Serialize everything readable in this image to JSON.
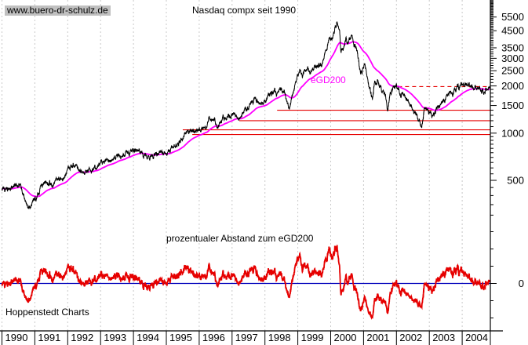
{
  "header": {
    "watermark": "www.buero-dr-schulz.de",
    "title": "Nasdaq compx seit 1990"
  },
  "footer": {
    "source": "Hoppenstedt Charts"
  },
  "chart_data": {
    "type": "line",
    "title": "Nasdaq compx seit 1990",
    "x_axis": {
      "years": [
        "1990",
        "1991",
        "1992",
        "1993",
        "1994",
        "1995",
        "1996",
        "1997",
        "1998",
        "1999",
        "2000",
        "2001",
        "2002",
        "2003",
        "2004"
      ],
      "start_year": 1990.0,
      "end_year": 2004.84,
      "grid": "vertical-dashed"
    },
    "price_axis": {
      "side": "right",
      "scale": "log",
      "tick_labels": [
        5500,
        4500,
        3500,
        3000,
        2500,
        2000,
        1500,
        1000,
        500
      ],
      "visible_range": [
        450,
        7000
      ]
    },
    "indicator_axis": {
      "side": "right",
      "scale": "linear",
      "unit": "%",
      "tick_labels": [
        0
      ],
      "visible_range": [
        -55,
        60
      ]
    },
    "series": {
      "name": "Nasdaq Composite",
      "color": "#000000",
      "anchors": [
        [
          1990.0,
          450
        ],
        [
          1990.1,
          430
        ],
        [
          1990.21,
          435
        ],
        [
          1990.35,
          450
        ],
        [
          1990.54,
          470
        ],
        [
          1990.6,
          445
        ],
        [
          1990.7,
          380
        ],
        [
          1990.79,
          325
        ],
        [
          1990.88,
          340
        ],
        [
          1990.96,
          370
        ],
        [
          1991.04,
          380
        ],
        [
          1991.13,
          435
        ],
        [
          1991.21,
          470
        ],
        [
          1991.33,
          480
        ],
        [
          1991.42,
          475
        ],
        [
          1991.54,
          475
        ],
        [
          1991.63,
          490
        ],
        [
          1991.71,
          500
        ],
        [
          1991.79,
          515
        ],
        [
          1991.88,
          510
        ],
        [
          1991.96,
          560
        ],
        [
          1992.04,
          586
        ],
        [
          1992.13,
          625
        ],
        [
          1992.21,
          615
        ],
        [
          1992.29,
          590
        ],
        [
          1992.38,
          570
        ],
        [
          1992.5,
          560
        ],
        [
          1992.63,
          575
        ],
        [
          1992.71,
          565
        ],
        [
          1992.79,
          585
        ],
        [
          1992.88,
          600
        ],
        [
          1992.96,
          655
        ],
        [
          1993.04,
          677
        ],
        [
          1993.13,
          665
        ],
        [
          1993.21,
          680
        ],
        [
          1993.29,
          660
        ],
        [
          1993.42,
          690
        ],
        [
          1993.54,
          705
        ],
        [
          1993.63,
          715
        ],
        [
          1993.71,
          740
        ],
        [
          1993.79,
          765
        ],
        [
          1993.88,
          750
        ],
        [
          1993.96,
          775
        ],
        [
          1994.04,
          776
        ],
        [
          1994.13,
          790
        ],
        [
          1994.21,
          755
        ],
        [
          1994.29,
          725
        ],
        [
          1994.38,
          720
        ],
        [
          1994.5,
          700
        ],
        [
          1994.63,
          720
        ],
        [
          1994.71,
          750
        ],
        [
          1994.79,
          765
        ],
        [
          1994.88,
          750
        ],
        [
          1994.96,
          750
        ],
        [
          1995.04,
          755
        ],
        [
          1995.13,
          790
        ],
        [
          1995.21,
          815
        ],
        [
          1995.29,
          840
        ],
        [
          1995.38,
          865
        ],
        [
          1995.5,
          930
        ],
        [
          1995.63,
          1000
        ],
        [
          1995.71,
          1020
        ],
        [
          1995.79,
          1060
        ],
        [
          1995.88,
          1040
        ],
        [
          1995.96,
          1050
        ],
        [
          1996.04,
          1060
        ],
        [
          1996.13,
          1100
        ],
        [
          1996.21,
          1100
        ],
        [
          1996.29,
          1190
        ],
        [
          1996.38,
          1240
        ],
        [
          1996.46,
          1185
        ],
        [
          1996.54,
          1080
        ],
        [
          1996.63,
          1140
        ],
        [
          1996.71,
          1225
        ],
        [
          1996.79,
          1220
        ],
        [
          1996.88,
          1290
        ],
        [
          1996.96,
          1290
        ],
        [
          1997.04,
          1380
        ],
        [
          1997.13,
          1310
        ],
        [
          1997.21,
          1220
        ],
        [
          1997.29,
          1260
        ],
        [
          1997.38,
          1400
        ],
        [
          1997.5,
          1440
        ],
        [
          1997.63,
          1590
        ],
        [
          1997.71,
          1690
        ],
        [
          1997.79,
          1600
        ],
        [
          1997.88,
          1560
        ],
        [
          1997.96,
          1570
        ],
        [
          1998.04,
          1620
        ],
        [
          1998.13,
          1770
        ],
        [
          1998.21,
          1835
        ],
        [
          1998.29,
          1870
        ],
        [
          1998.38,
          1780
        ],
        [
          1998.5,
          1895
        ],
        [
          1998.58,
          1870
        ],
        [
          1998.67,
          1600
        ],
        [
          1998.75,
          1420
        ],
        [
          1998.83,
          1770
        ],
        [
          1998.92,
          1980
        ],
        [
          1998.98,
          2190
        ],
        [
          1999.06,
          2510
        ],
        [
          1999.13,
          2290
        ],
        [
          1999.21,
          2460
        ],
        [
          1999.29,
          2540
        ],
        [
          1999.38,
          2470
        ],
        [
          1999.46,
          2550
        ],
        [
          1999.54,
          2640
        ],
        [
          1999.63,
          2740
        ],
        [
          1999.71,
          2750
        ],
        [
          1999.79,
          2970
        ],
        [
          1999.88,
          3340
        ],
        [
          1999.96,
          4070
        ],
        [
          2000.04,
          3940
        ],
        [
          2000.13,
          4700
        ],
        [
          2000.19,
          5048
        ],
        [
          2000.27,
          4580
        ],
        [
          2000.31,
          3320
        ],
        [
          2000.38,
          3400
        ],
        [
          2000.46,
          3970
        ],
        [
          2000.54,
          3770
        ],
        [
          2000.63,
          4200
        ],
        [
          2000.71,
          3670
        ],
        [
          2000.79,
          3370
        ],
        [
          2000.88,
          2600
        ],
        [
          2000.96,
          2470
        ],
        [
          2001.04,
          2770
        ],
        [
          2001.13,
          2150
        ],
        [
          2001.21,
          1840
        ],
        [
          2001.27,
          1640
        ],
        [
          2001.33,
          2110
        ],
        [
          2001.42,
          2150
        ],
        [
          2001.5,
          2030
        ],
        [
          2001.58,
          1830
        ],
        [
          2001.67,
          1700
        ],
        [
          2001.73,
          1423
        ],
        [
          2001.79,
          1700
        ],
        [
          2001.88,
          1930
        ],
        [
          2001.96,
          1950
        ],
        [
          2002.04,
          1935
        ],
        [
          2002.13,
          1730
        ],
        [
          2002.21,
          1845
        ],
        [
          2002.29,
          1690
        ],
        [
          2002.38,
          1615
        ],
        [
          2002.46,
          1460
        ],
        [
          2002.54,
          1330
        ],
        [
          2002.63,
          1315
        ],
        [
          2002.71,
          1170
        ],
        [
          2002.77,
          1114
        ],
        [
          2002.85,
          1420
        ],
        [
          2002.92,
          1480
        ],
        [
          2002.98,
          1335
        ],
        [
          2003.06,
          1320
        ],
        [
          2003.13,
          1280
        ],
        [
          2003.19,
          1340
        ],
        [
          2003.29,
          1460
        ],
        [
          2003.38,
          1600
        ],
        [
          2003.46,
          1625
        ],
        [
          2003.54,
          1735
        ],
        [
          2003.63,
          1810
        ],
        [
          2003.71,
          1790
        ],
        [
          2003.79,
          1930
        ],
        [
          2003.88,
          1960
        ],
        [
          2003.96,
          2000
        ],
        [
          2004.04,
          2060
        ],
        [
          2004.1,
          2085
        ],
        [
          2004.17,
          1995
        ],
        [
          2004.25,
          2000
        ],
        [
          2004.33,
          1940
        ],
        [
          2004.42,
          1990
        ],
        [
          2004.5,
          1890
        ],
        [
          2004.58,
          1850
        ],
        [
          2004.65,
          1840
        ],
        [
          2004.71,
          1900
        ],
        [
          2004.78,
          1930
        ],
        [
          2004.84,
          1960
        ]
      ]
    },
    "ema": {
      "label": "eGD200",
      "period": 200,
      "color": "#ff00ff"
    },
    "indicator": {
      "label": "prozentualer Abstand zum eGD200",
      "color": "#e60000",
      "zero_line_color": "#0000bb"
    },
    "support_lines": [
      {
        "price": 1400,
        "from_year": 1998.37
      },
      {
        "price": 1200,
        "from_year": 1997.22
      },
      {
        "price": 1050,
        "from_year": 1995.5
      },
      {
        "price": 980,
        "from_year": 1995.79
      }
    ],
    "resistance_line": {
      "price": 1980,
      "from_year": 2002.05,
      "style": "dashed",
      "color": "#e60000"
    },
    "colors": {
      "price": "#000000",
      "ema": "#ff00ff",
      "levels": "#e60000",
      "indicator": "#e60000",
      "zero_line": "#0000bb",
      "grid": "#c9c9c9",
      "axis": "#000000",
      "watermark_bg": "#c0c0c0"
    }
  }
}
